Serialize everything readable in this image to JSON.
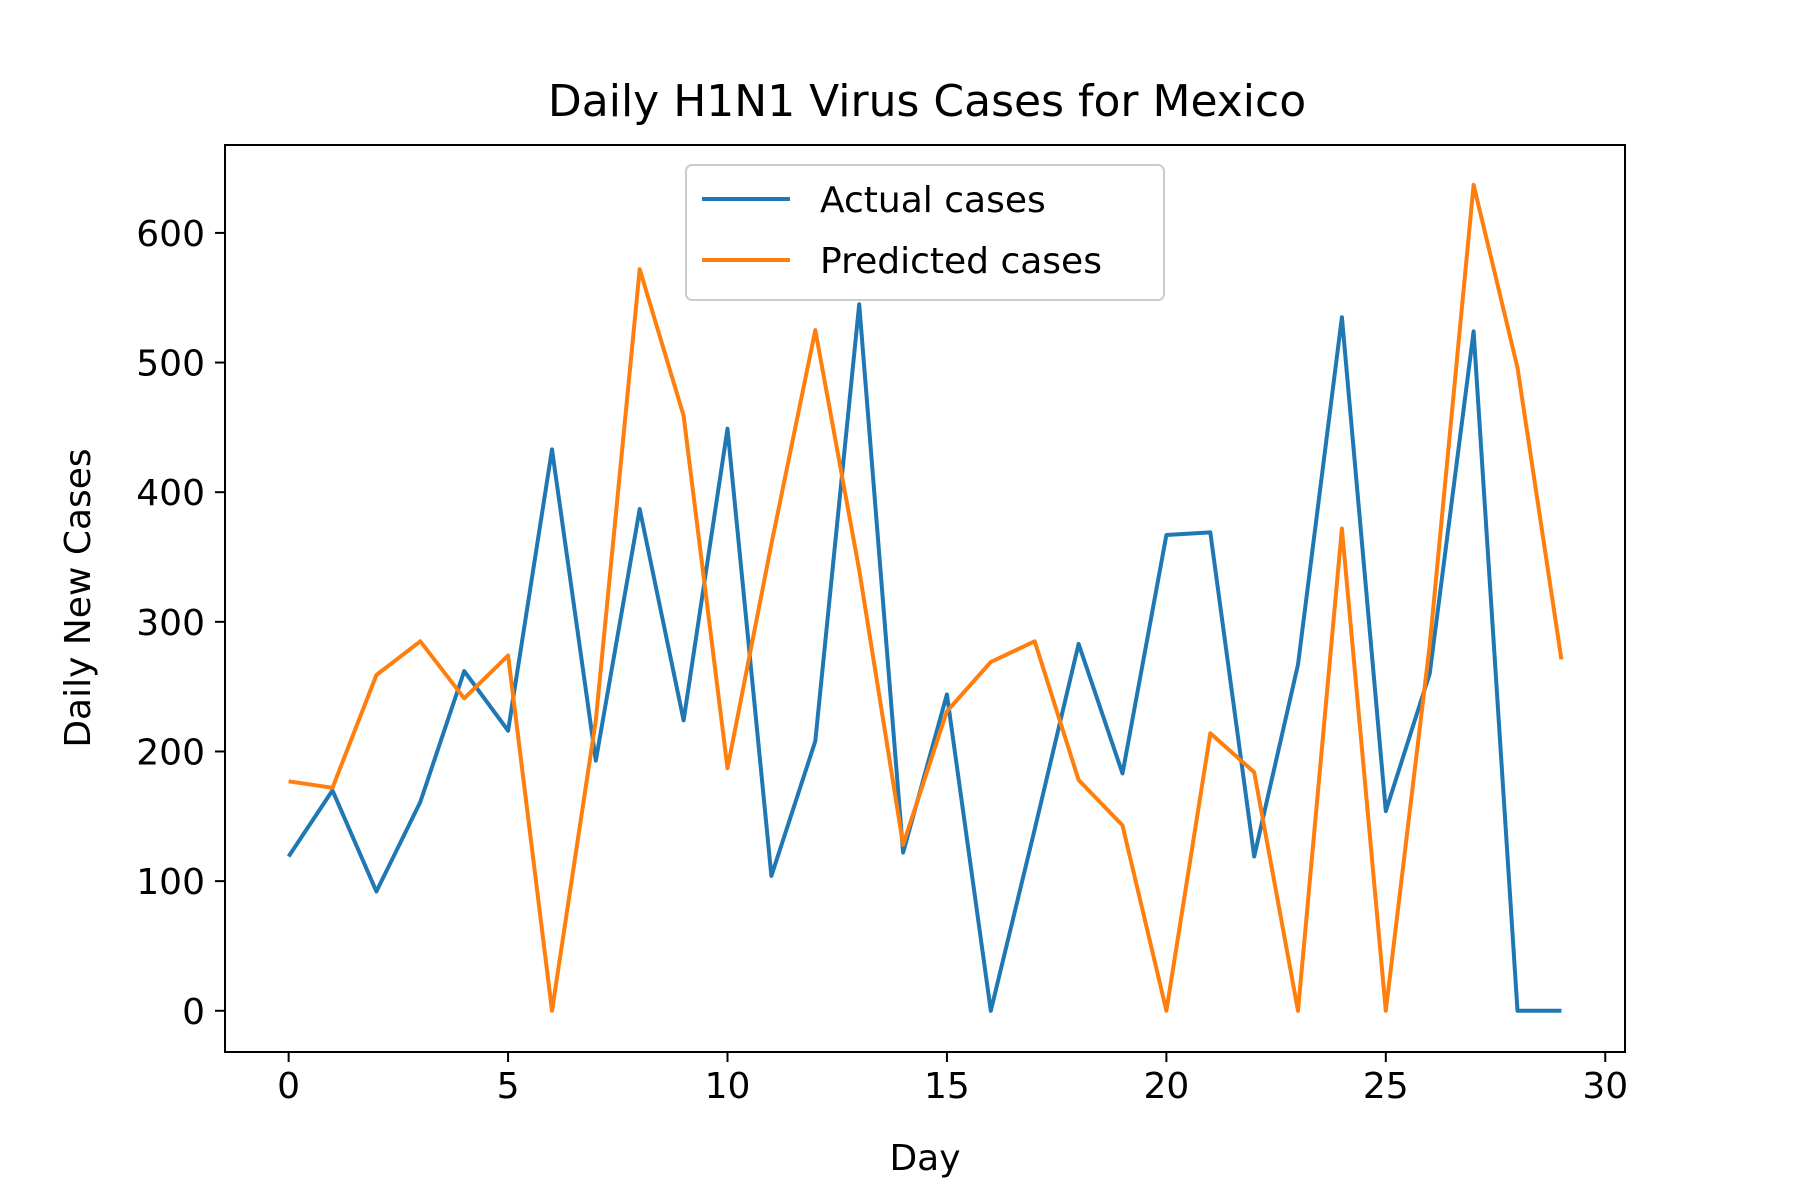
{
  "chart_data": {
    "type": "line",
    "title": "Daily H1N1 Virus Cases for Mexico",
    "xlabel": "Day",
    "ylabel": "Daily New Cases",
    "xlim": [
      -1.45,
      30.45
    ],
    "ylim": [
      -31.8,
      667.8
    ],
    "xticks": [
      0,
      5,
      10,
      15,
      20,
      25,
      30
    ],
    "yticks": [
      0,
      100,
      200,
      300,
      400,
      500,
      600
    ],
    "grid": false,
    "legend_position": "upper center",
    "x": [
      0,
      1,
      2,
      3,
      4,
      5,
      6,
      7,
      8,
      9,
      10,
      11,
      12,
      13,
      14,
      15,
      16,
      17,
      18,
      19,
      20,
      21,
      22,
      23,
      24,
      25,
      26,
      27,
      28,
      29
    ],
    "series": [
      {
        "name": "Actual cases",
        "color": "#1f77b4",
        "values": [
          119,
          170,
          92,
          161,
          262,
          216,
          433,
          193,
          387,
          224,
          449,
          104,
          208,
          545,
          122,
          244,
          0,
          140,
          283,
          183,
          367,
          369,
          119,
          267,
          535,
          154,
          260,
          524,
          0,
          0
        ]
      },
      {
        "name": "Predicted cases",
        "color": "#ff7f0e",
        "values": [
          177,
          172,
          259,
          285,
          241,
          274,
          0,
          224,
          572,
          459,
          187,
          360,
          525,
          340,
          128,
          231,
          269,
          285,
          178,
          143,
          0,
          214,
          184,
          0,
          372,
          0,
          282,
          637,
          496,
          271
        ]
      }
    ]
  }
}
